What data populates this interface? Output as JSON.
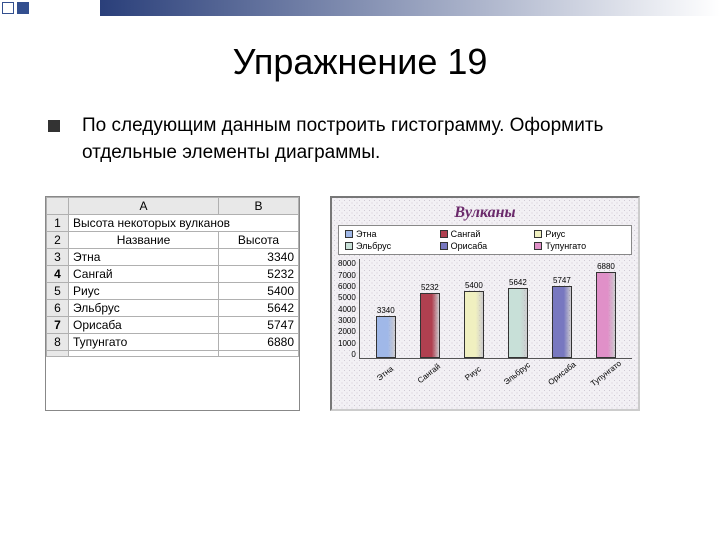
{
  "topbar": {
    "square1_outline": "#334f8f",
    "square2_fill": "#334f8f",
    "gradient_from": "#2a3f7a",
    "gradient_to": "#ffffff"
  },
  "title": "Упражнение 19",
  "instruction": "По следующим данным построить гистограмму. Оформить отдельные элементы диаграммы.",
  "sheet": {
    "col_headers": [
      "",
      "A",
      "B"
    ],
    "merged_header": "Высота некоторых вулканов",
    "sub_headers": [
      "Название",
      "Высота"
    ],
    "rows": [
      {
        "n": "3",
        "name": "Этна",
        "h": "3340"
      },
      {
        "n": "4",
        "name": "Сангай",
        "h": "5232",
        "bold_n": true
      },
      {
        "n": "5",
        "name": "Риус",
        "h": "5400"
      },
      {
        "n": "6",
        "name": "Эльбрус",
        "h": "5642"
      },
      {
        "n": "7",
        "name": "Орисаба",
        "h": "5747",
        "bold_n": true
      },
      {
        "n": "8",
        "name": "Тупунгато",
        "h": "6880"
      }
    ]
  },
  "chart": {
    "title": "Вулканы",
    "title_color": "#6b2a6b",
    "legend": [
      {
        "label": "Этна",
        "color": "#a0b8e8"
      },
      {
        "label": "Сангай",
        "color": "#b04050"
      },
      {
        "label": "Риус",
        "color": "#f0f0c0"
      },
      {
        "label": "Эльбрус",
        "color": "#c8e0d8"
      },
      {
        "label": "Орисаба",
        "color": "#7878c0"
      },
      {
        "label": "Тупунгато",
        "color": "#e090c8"
      }
    ],
    "y_ticks": [
      "0",
      "1000",
      "2000",
      "3000",
      "4000",
      "5000",
      "6000",
      "7000",
      "8000"
    ],
    "y_max": 8000,
    "bars": [
      {
        "label": "Этна",
        "value": 3340,
        "color": "#a0b8e8"
      },
      {
        "label": "Сангай",
        "value": 5232,
        "color": "#b04050"
      },
      {
        "label": "Риус",
        "value": 5400,
        "color": "#f0f0c0"
      },
      {
        "label": "Эльбрус",
        "value": 5642,
        "color": "#c8e0d8"
      },
      {
        "label": "Орисаба",
        "value": 5747,
        "color": "#7878c0"
      },
      {
        "label": "Тупунгато",
        "value": 6880,
        "color": "#e090c8"
      }
    ]
  }
}
